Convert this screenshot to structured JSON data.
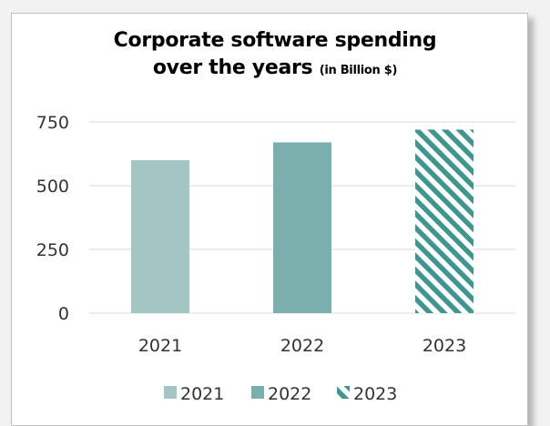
{
  "chart_data": {
    "type": "bar",
    "title": "Corporate software spending over the years",
    "title_line1": "Corporate software spending",
    "title_line2": "over the years",
    "title_unit": "(in Billion $)",
    "categories": [
      "2021",
      "2022",
      "2023"
    ],
    "values": [
      600,
      670,
      720
    ],
    "ylim": [
      0,
      750
    ],
    "yticks": [
      0,
      250,
      500,
      750
    ],
    "grid": true,
    "legend_position": "bottom",
    "legend": [
      "2021",
      "2022",
      "2023"
    ],
    "colors": [
      "#a3c6c4",
      "#7aafad",
      "#3f9691"
    ],
    "patterns": [
      "solid",
      "solid",
      "diagonal-stripes"
    ]
  }
}
